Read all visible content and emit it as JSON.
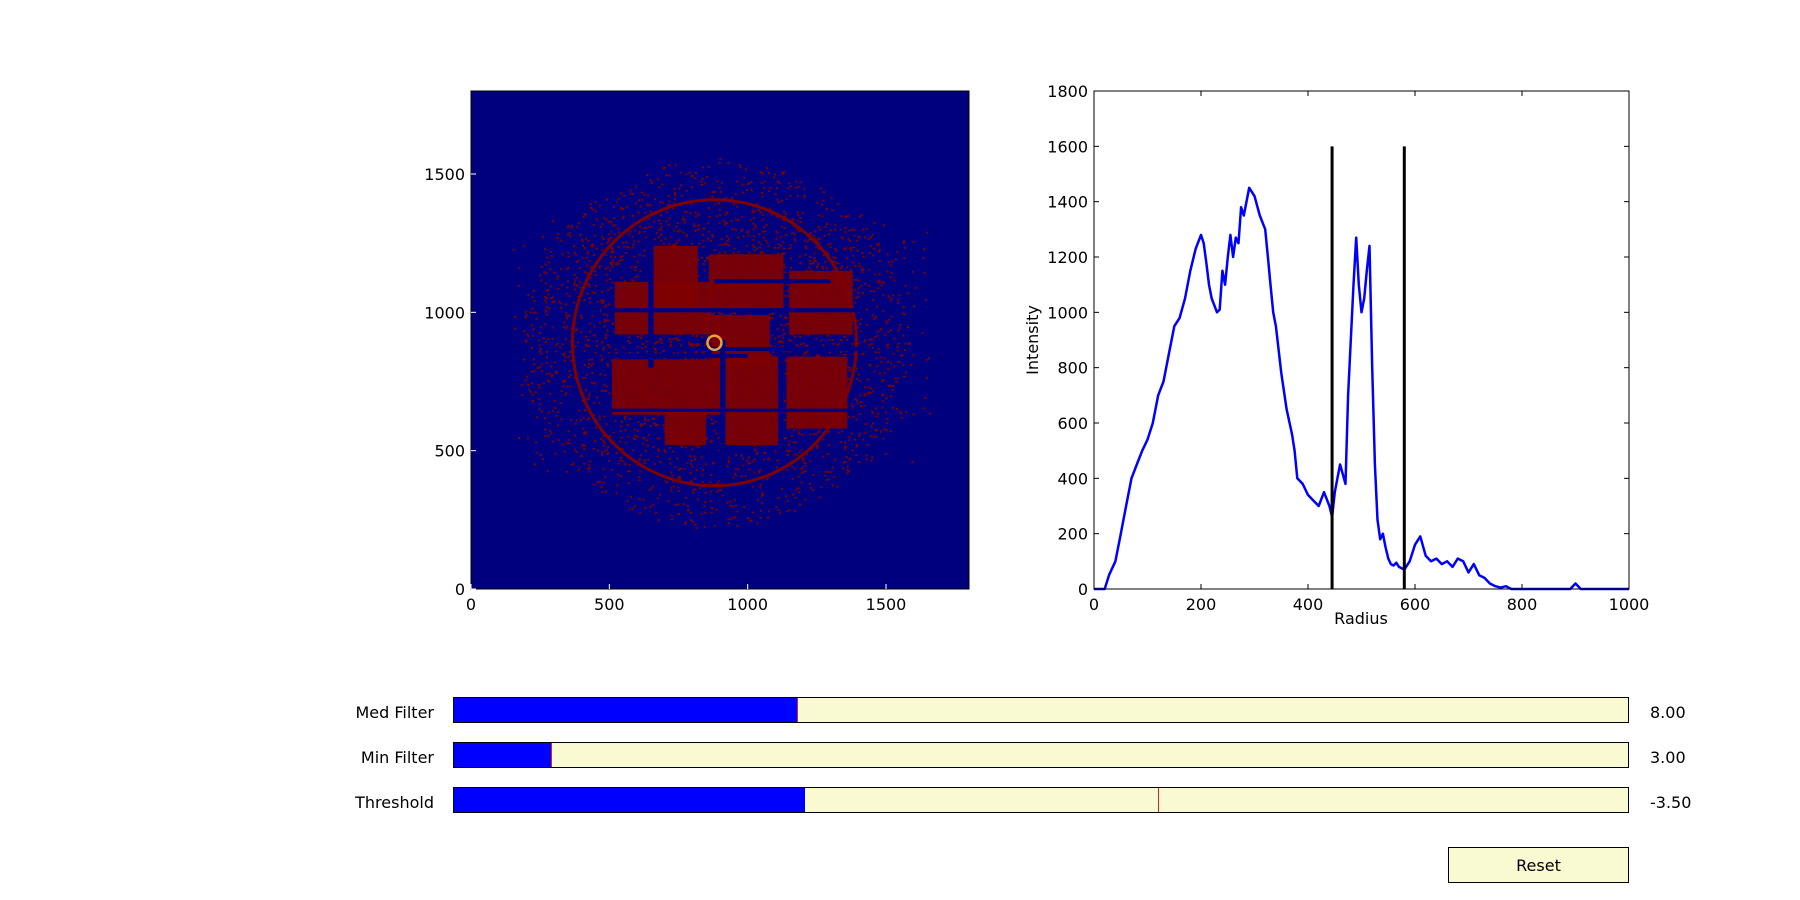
{
  "image_panel": {
    "colors": {
      "background": "#00007f",
      "foreground": "#7f0000",
      "center_marker": "#e8a33a"
    },
    "xlim": [
      0,
      1800
    ],
    "ylim": [
      0,
      1800
    ],
    "x_ticks": [
      "0",
      "500",
      "1000",
      "1500"
    ],
    "y_ticks": [
      "0",
      "500",
      "1000",
      "1500"
    ],
    "center": [
      880,
      890
    ]
  },
  "chart_data": {
    "type": "line",
    "title": "",
    "xlabel": "Radius",
    "ylabel": "Intensity",
    "xlim": [
      0,
      1000
    ],
    "ylim": [
      0,
      1800
    ],
    "x_ticks": [
      "0",
      "200",
      "400",
      "600",
      "800",
      "1000"
    ],
    "y_ticks": [
      "0",
      "200",
      "400",
      "600",
      "800",
      "1000",
      "1200",
      "1400",
      "1600",
      "1800"
    ],
    "series": [
      {
        "color": "#0000ff",
        "x": [
          0,
          20,
          28,
          40,
          50,
          60,
          70,
          80,
          90,
          100,
          110,
          120,
          130,
          140,
          150,
          160,
          170,
          180,
          190,
          200,
          205,
          210,
          215,
          220,
          230,
          235,
          240,
          245,
          250,
          255,
          260,
          265,
          270,
          275,
          280,
          290,
          300,
          310,
          320,
          325,
          330,
          335,
          340,
          350,
          360,
          370,
          375,
          380,
          390,
          395,
          400,
          410,
          420,
          430,
          440,
          445,
          450,
          455,
          460,
          470,
          475,
          480,
          485,
          490,
          495,
          500,
          505,
          510,
          515,
          520,
          525,
          530,
          535,
          540,
          545,
          550,
          555,
          560,
          565,
          570,
          580,
          590,
          600,
          610,
          620,
          630,
          640,
          650,
          660,
          670,
          680,
          690,
          700,
          710,
          720,
          730,
          740,
          750,
          760,
          770,
          780,
          800,
          850,
          890,
          900,
          910,
          950,
          1000
        ],
        "y": [
          0,
          0,
          50,
          100,
          200,
          300,
          400,
          450,
          500,
          540,
          600,
          700,
          750,
          850,
          950,
          980,
          1050,
          1150,
          1230,
          1280,
          1250,
          1180,
          1100,
          1050,
          1000,
          1010,
          1150,
          1100,
          1200,
          1280,
          1200,
          1270,
          1250,
          1380,
          1350,
          1450,
          1420,
          1350,
          1300,
          1200,
          1100,
          1000,
          950,
          780,
          650,
          560,
          500,
          400,
          380,
          360,
          340,
          320,
          300,
          350,
          300,
          260,
          350,
          400,
          450,
          380,
          700,
          900,
          1100,
          1270,
          1100,
          1000,
          1050,
          1150,
          1240,
          800,
          450,
          250,
          180,
          200,
          150,
          110,
          90,
          85,
          95,
          80,
          70,
          100,
          160,
          190,
          120,
          100,
          110,
          90,
          100,
          80,
          110,
          100,
          60,
          90,
          50,
          40,
          20,
          10,
          5,
          10,
          0,
          0,
          0,
          0,
          20,
          0,
          0,
          0
        ]
      }
    ],
    "markers": [
      {
        "x": 445,
        "y_top": 1600
      },
      {
        "x": 580,
        "y_top": 1600
      }
    ]
  },
  "sliders": [
    {
      "label": "Med Filter",
      "fraction": 0.292,
      "init_fraction": 0.292,
      "value_text": "8.00"
    },
    {
      "label": "Min Filter",
      "fraction": 0.083,
      "init_fraction": 0.083,
      "value_text": "3.00"
    },
    {
      "label": "Threshold",
      "fraction": 0.299,
      "init_fraction": 0.6,
      "value_text": "-3.50"
    }
  ],
  "reset_button": {
    "label": "Reset"
  }
}
